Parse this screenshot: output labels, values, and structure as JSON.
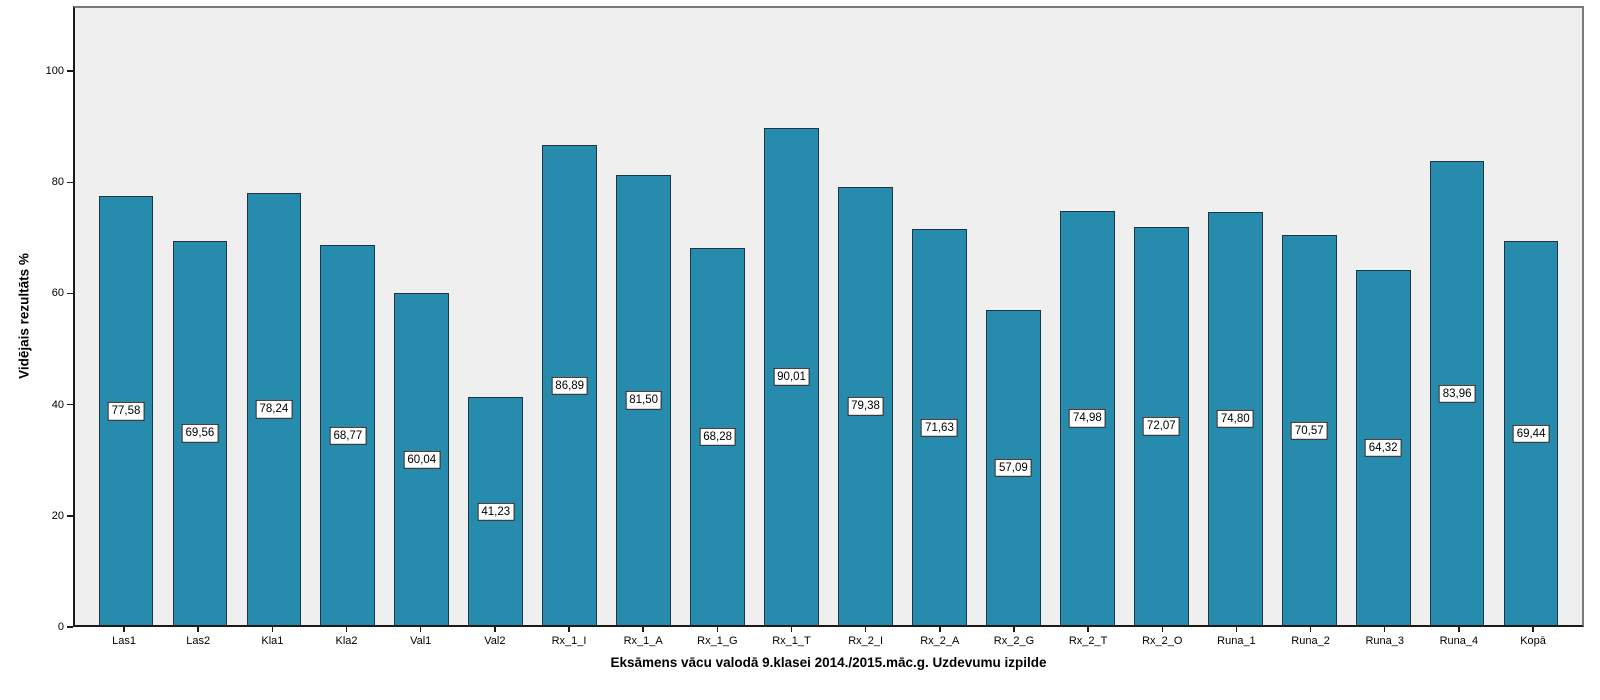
{
  "chart_data": {
    "type": "bar",
    "title": "",
    "xlabel": "Eksāmens vācu valodā 9.klasei 2014./2015.māc.g. Uzdevumu izpilde",
    "ylabel": "Vidējais rezultāts %",
    "categories": [
      "Las1",
      "Las2",
      "Kla1",
      "Kla2",
      "Val1",
      "Val2",
      "Rx_1_I",
      "Rx_1_A",
      "Rx_1_G",
      "Rx_1_T",
      "Rx_2_I",
      "Rx_2_A",
      "Rx_2_G",
      "Rx_2_T",
      "Rx_2_O",
      "Runa_1",
      "Runa_2",
      "Runa_3",
      "Runa_4",
      "Kopā"
    ],
    "values": [
      77.58,
      69.56,
      78.24,
      68.77,
      60.04,
      41.23,
      86.89,
      81.5,
      68.28,
      90.01,
      79.38,
      71.63,
      57.09,
      74.98,
      72.07,
      74.8,
      70.57,
      64.32,
      83.96,
      69.44
    ],
    "value_labels": [
      "77,58",
      "69,56",
      "78,24",
      "68,77",
      "60,04",
      "41,23",
      "86,89",
      "81,50",
      "68,28",
      "90,01",
      "79,38",
      "71,63",
      "57,09",
      "74,98",
      "72,07",
      "74,80",
      "70,57",
      "64,32",
      "83,96",
      "69,44"
    ],
    "y_ticks": [
      0,
      20,
      40,
      60,
      80,
      100
    ],
    "ylim": [
      0,
      111.7
    ],
    "grid": false,
    "legend": false,
    "colors": {
      "bar_fill": "#268BAD",
      "bar_border": "#1E3642",
      "plot_bg": "#EFEFEF",
      "frame_gray": "#7A7A7A",
      "axis_black": "#1A1A1A",
      "label_box_bg": "#FFFFFF",
      "label_box_border": "#1A1A1A",
      "page_bg": "#FFFFFF"
    }
  }
}
